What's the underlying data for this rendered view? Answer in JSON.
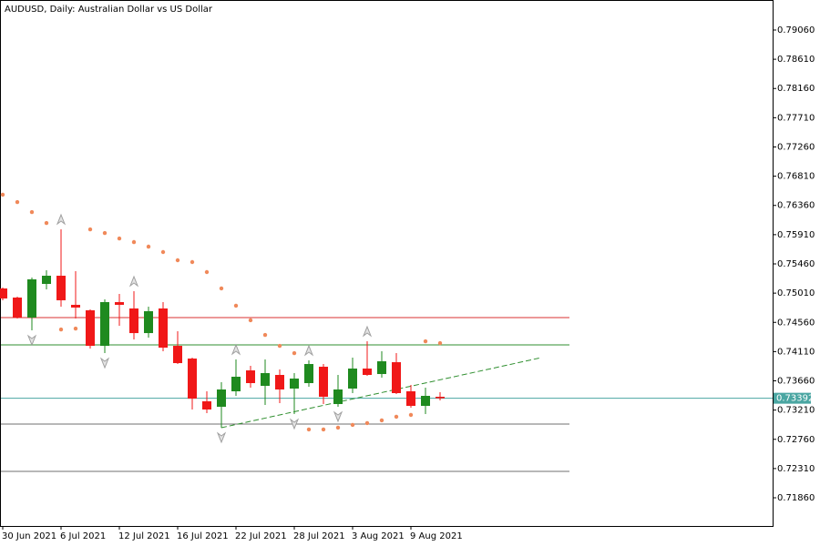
{
  "chart_data": {
    "type": "candlestick",
    "title": "AUDUSD, Daily:  Australian Dollar vs US Dollar",
    "categories": [
      "30 Jun 2021",
      null,
      null,
      null,
      "6 Jul 2021",
      null,
      null,
      null,
      "12 Jul 2021",
      null,
      null,
      null,
      "16 Jul 2021",
      null,
      null,
      null,
      "22 Jul 2021",
      null,
      null,
      null,
      "28 Jul 2021",
      null,
      null,
      null,
      "3 Aug 2021",
      null,
      null,
      null,
      "9 Aug 2021",
      null,
      null
    ],
    "open": [
      0.75082,
      0.74942,
      0.74634,
      0.75152,
      0.75278,
      0.7483,
      0.74746,
      0.74199,
      0.74872,
      0.74774,
      0.74395,
      0.74774,
      0.74199,
      0.74003,
      0.73345,
      0.73261,
      0.73499,
      0.73821,
      0.73583,
      0.73751,
      0.73541,
      0.73625,
      0.73877,
      0.73303,
      0.73541,
      0.73849,
      0.73765,
      0.73947,
      0.73499,
      0.73275,
      0.73415
    ],
    "high": [
      0.75096,
      0.74956,
      0.7525,
      0.75362,
      0.75992,
      0.75348,
      0.7476,
      0.74914,
      0.74998,
      0.7504,
      0.74802,
      0.74872,
      0.74423,
      0.74017,
      0.73499,
      0.73639,
      0.73989,
      0.73891,
      0.73989,
      0.73835,
      0.73779,
      0.73975,
      0.73919,
      0.73751,
      0.74017,
      0.74269,
      0.74115,
      0.74087,
      0.73597,
      0.73555,
      0.73485
    ],
    "low": [
      0.749,
      0.7462,
      0.74437,
      0.75068,
      0.74802,
      0.7462,
      0.74157,
      0.74087,
      0.74507,
      0.74297,
      0.74325,
      0.74115,
      0.73919,
      0.73219,
      0.73163,
      0.72939,
      0.73429,
      0.73555,
      0.73289,
      0.73317,
      0.73149,
      0.73569,
      0.73303,
      0.73261,
      0.73471,
      0.73737,
      0.73709,
      0.73457,
      0.73247,
      0.73149,
      0.73359
    ],
    "close": [
      0.74928,
      0.74634,
      0.75222,
      0.75278,
      0.749,
      0.74788,
      0.74199,
      0.74872,
      0.7483,
      0.74395,
      0.74732,
      0.74171,
      0.73933,
      0.73387,
      0.73219,
      0.73527,
      0.73723,
      0.73625,
      0.73779,
      0.73527,
      0.73695,
      0.73919,
      0.73415,
      0.73527,
      0.73849,
      0.73751,
      0.73961,
      0.73471,
      0.73275,
      0.73429,
      0.73392
    ],
    "up_color": "#1f8a1f",
    "down_color": "#f01818",
    "ylim": [
      0.71426,
      0.79522
    ],
    "yticks": [
      {
        "value": 0.7186,
        "label": "0.71860"
      },
      {
        "value": 0.7231,
        "label": "0.72310"
      },
      {
        "value": 0.7276,
        "label": "0.72760"
      },
      {
        "value": 0.7321,
        "label": "0.73210"
      },
      {
        "value": 0.7366,
        "label": "0.73660"
      },
      {
        "value": 0.7411,
        "label": "0.74110"
      },
      {
        "value": 0.7456,
        "label": "0.74560"
      },
      {
        "value": 0.7501,
        "label": "0.75010"
      },
      {
        "value": 0.7546,
        "label": "0.75460"
      },
      {
        "value": 0.7591,
        "label": "0.75910"
      },
      {
        "value": 0.7636,
        "label": "0.76360"
      },
      {
        "value": 0.7681,
        "label": "0.76810"
      },
      {
        "value": 0.7726,
        "label": "0.77260"
      },
      {
        "value": 0.7771,
        "label": "0.77710"
      },
      {
        "value": 0.7816,
        "label": "0.78160"
      },
      {
        "value": 0.7861,
        "label": "0.78610"
      },
      {
        "value": 0.7906,
        "label": "0.79060"
      }
    ],
    "sar": {
      "color": "#f0895a",
      "values": [
        0.76525,
        0.76412,
        0.76258,
        0.7609,
        0.74451,
        0.74465,
        0.75992,
        0.75936,
        0.75852,
        0.75796,
        0.75726,
        0.75642,
        0.75516,
        0.75488,
        0.75334,
        0.75082,
        0.74816,
        0.74592,
        0.74367,
        0.74199,
        0.74087,
        0.72911,
        0.72911,
        0.72939,
        0.72981,
        0.73009,
        0.73051,
        0.73107,
        0.73135,
        0.74269,
        0.74241
      ]
    },
    "fractals": {
      "color": "#a0a0a0",
      "up": [
        null,
        null,
        null,
        null,
        0.75992,
        null,
        null,
        null,
        null,
        0.7504,
        null,
        null,
        null,
        null,
        null,
        null,
        0.73989,
        null,
        null,
        null,
        null,
        0.73975,
        null,
        null,
        null,
        0.74269,
        null,
        null,
        null,
        null,
        null
      ],
      "down": [
        null,
        null,
        0.74437,
        null,
        null,
        null,
        null,
        0.74087,
        null,
        null,
        null,
        null,
        null,
        null,
        null,
        0.72939,
        null,
        null,
        null,
        null,
        0.73149,
        null,
        null,
        0.73261,
        null,
        null,
        null,
        null,
        null,
        null,
        null
      ]
    },
    "levels": [
      {
        "value": 0.74634,
        "color": "#d83030"
      },
      {
        "value": 0.74213,
        "color": "#2f8f2f"
      },
      {
        "value": 0.72995,
        "color": "#707070"
      },
      {
        "value": 0.72266,
        "color": "#707070"
      }
    ],
    "trendline": {
      "color": "#2f8f2f",
      "x": [
        15,
        36.94
      ],
      "y": [
        0.72939,
        0.74017
      ]
    },
    "current_price": {
      "value": 0.73392,
      "label": "0.73392",
      "color": "#4aa6a2"
    }
  }
}
